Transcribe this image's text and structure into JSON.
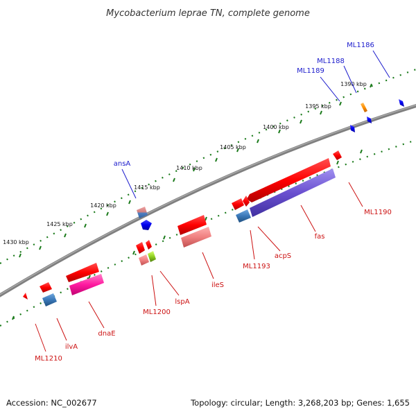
{
  "title": "Mycobacterium leprae TN, complete genome",
  "footer": {
    "accession": "Accession: NC_002677",
    "summary": "Topology: circular; Length: 3,268,203 bp; Genes: 1,655"
  },
  "colors": {
    "backbone": "#808080",
    "tick": "#1a7a1a",
    "forward_label": "#1a1acc",
    "reverse_label": "#cc1111"
  },
  "tick_labels": [
    "1390 kbp",
    "1395 kbp",
    "1400 kbp",
    "1405 kbp",
    "1410 kbp",
    "1415 kbp",
    "1420 kbp",
    "1425 kbp",
    "1430 kbp"
  ],
  "forward_labels": [
    "ML1186",
    "ML1188",
    "ML1189",
    "ansA"
  ],
  "reverse_labels": [
    "ML1190",
    "fas",
    "acpS",
    "ML1193",
    "ileS",
    "lspA",
    "ML1200",
    "dnaE",
    "ilvA",
    "ML1210"
  ]
}
